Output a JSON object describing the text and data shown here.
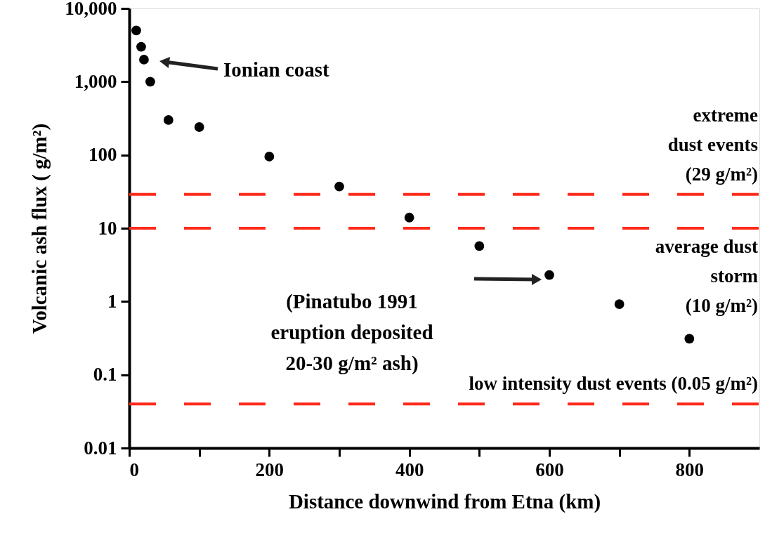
{
  "chart_data": {
    "type": "scatter",
    "xlabel": "Distance downwind from Etna (km)",
    "ylabel": "Volcanic ash flux ( g/m²)",
    "x": [
      10,
      17,
      21,
      30,
      56,
      100,
      200,
      300,
      400,
      500,
      600,
      700,
      800
    ],
    "series": [
      {
        "color": "#000000",
        "values": [
          5000,
          3000,
          2000,
          1000,
          300,
          240,
          95,
          37,
          14,
          5.7,
          2.3,
          0.92,
          0.31
        ]
      }
    ],
    "marker": "circle",
    "log": "y",
    "xlim": [
      0,
      900
    ],
    "xticks": [
      0,
      {
        "value": 100,
        "label": null
      },
      200,
      {
        "value": 300,
        "label": null
      },
      400,
      {
        "value": 500,
        "label": null
      },
      600,
      {
        "value": 700,
        "label": null
      },
      800
    ],
    "ylim": [
      0.01,
      10000
    ],
    "yticks": [
      0.01,
      0.1,
      1,
      10,
      100,
      {
        "value": 1000,
        "label": "1,000"
      },
      {
        "value": 10000,
        "label": "10,000"
      }
    ],
    "grid": false,
    "ref_lines": [
      {
        "axis": "y",
        "value": 29,
        "label": "extreme\ndust events\n(29 g/m²)",
        "color": "#ff2a1a",
        "line_style": "dashed"
      },
      {
        "axis": "y",
        "value": 10,
        "label": "average dust\nstorm\n(10 g/m²)",
        "color": "#ff2a1a",
        "line_style": "dashed"
      },
      {
        "axis": "y",
        "value": 0.04,
        "label": "low intensity dust events (0.05 g/m²)",
        "color": "#ff2a1a",
        "line_style": "dashed"
      }
    ],
    "annotations": [
      "Ionian coast",
      "(Pinatubo 1991\neruption deposited\n20-30 g/m² ash)"
    ]
  }
}
